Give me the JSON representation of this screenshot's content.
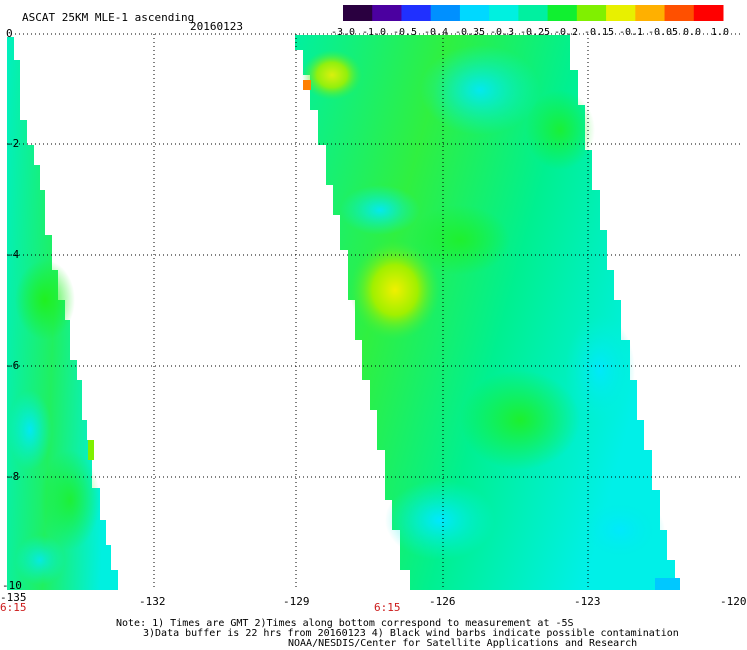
{
  "header": {
    "title": "ASCAT 25KM MLE-1 ascending",
    "date": "20160123"
  },
  "colorbar": {
    "labels": [
      "-3.0",
      "-1.0",
      "-0.5",
      "-0.4",
      "-0.35",
      "-0.3",
      "-0.25",
      "-0.2",
      "-0.15",
      "-0.1",
      "-0.05",
      "0.0",
      "1.0"
    ],
    "colors": [
      "#2a0040",
      "#4b00a0",
      "#2030ff",
      "#0090ff",
      "#00d8ff",
      "#00f0e0",
      "#00f0a0",
      "#10f030",
      "#80f000",
      "#e8f000",
      "#ffb000",
      "#ff5000",
      "#ff0000"
    ]
  },
  "axes": {
    "y_ticks": [
      "0",
      "-2",
      "-4",
      "-6",
      "-8",
      "-10"
    ],
    "x_ticks": [
      "-135",
      "-132",
      "-129",
      "-126",
      "-123",
      "-120"
    ],
    "time_labels": [
      "6:15",
      "6:15"
    ]
  },
  "notes": {
    "line1": "Note: 1) Times are GMT 2)Times along bottom correspond to measurement at -5S",
    "line2": "3)Data buffer is 22 hrs from 20160123 4) Black wind barbs indicate possible contamination",
    "line3": "NOAA/NESDIS/Center for Satellite Applications and Research"
  }
}
